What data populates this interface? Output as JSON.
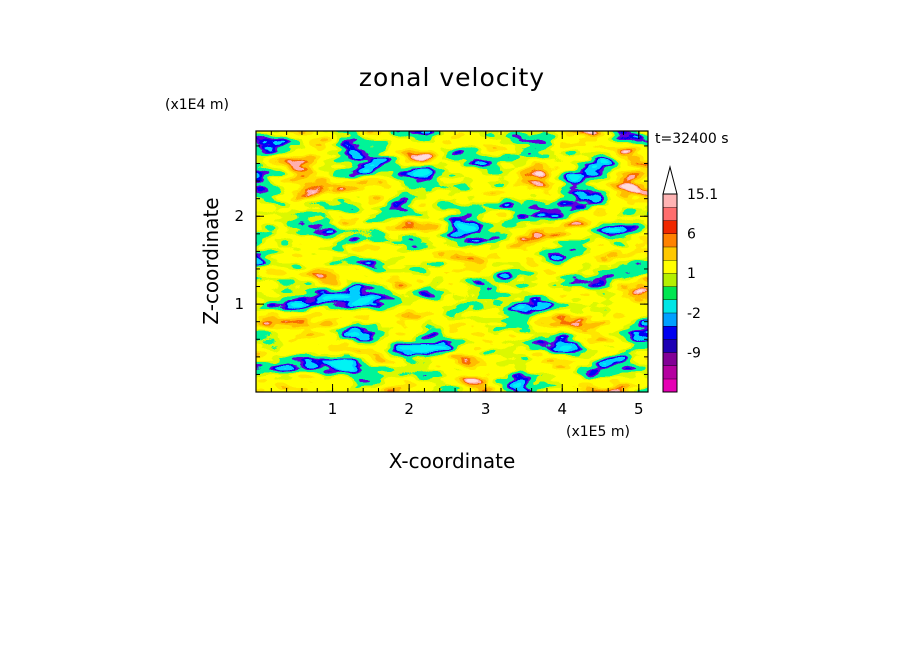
{
  "chart_data": {
    "type": "heatmap",
    "title": "zonal velocity",
    "xlabel": "X-coordinate",
    "ylabel": "Z-coordinate",
    "x_unit": "(x1E5 m)",
    "y_unit": "(x1E4 m)",
    "time_label": "t=32400 s",
    "xlim": [
      0,
      5.12
    ],
    "ylim": [
      0,
      2.97
    ],
    "x_ticks": [
      1,
      2,
      3,
      4,
      5
    ],
    "y_ticks": [
      1,
      2
    ],
    "colorbar": {
      "levels": [
        -15,
        -12,
        -9,
        -6,
        -4,
        -2,
        -1,
        0,
        1,
        2,
        4,
        6,
        9,
        12,
        15.1
      ],
      "colors": [
        "#e600b4",
        "#b400a0",
        "#820096",
        "#1e00b4",
        "#0000f0",
        "#00a0ff",
        "#00e6e6",
        "#00e650",
        "#b4f000",
        "#ffff00",
        "#ffc800",
        "#ff8200",
        "#f02800",
        "#ff6e6e",
        "#ffb4b4"
      ],
      "tick_labels": [
        "15.1",
        "6",
        "1",
        "-2",
        "-9"
      ],
      "tick_values": [
        15.1,
        6,
        1,
        -2,
        -9
      ],
      "extend": "max"
    },
    "field_description": "turbulent zonal velocity field, mostly weak positive (yellow/green) with scattered strong positive (orange/red) and negative (blue) patches, tilted structures toward upper right"
  }
}
